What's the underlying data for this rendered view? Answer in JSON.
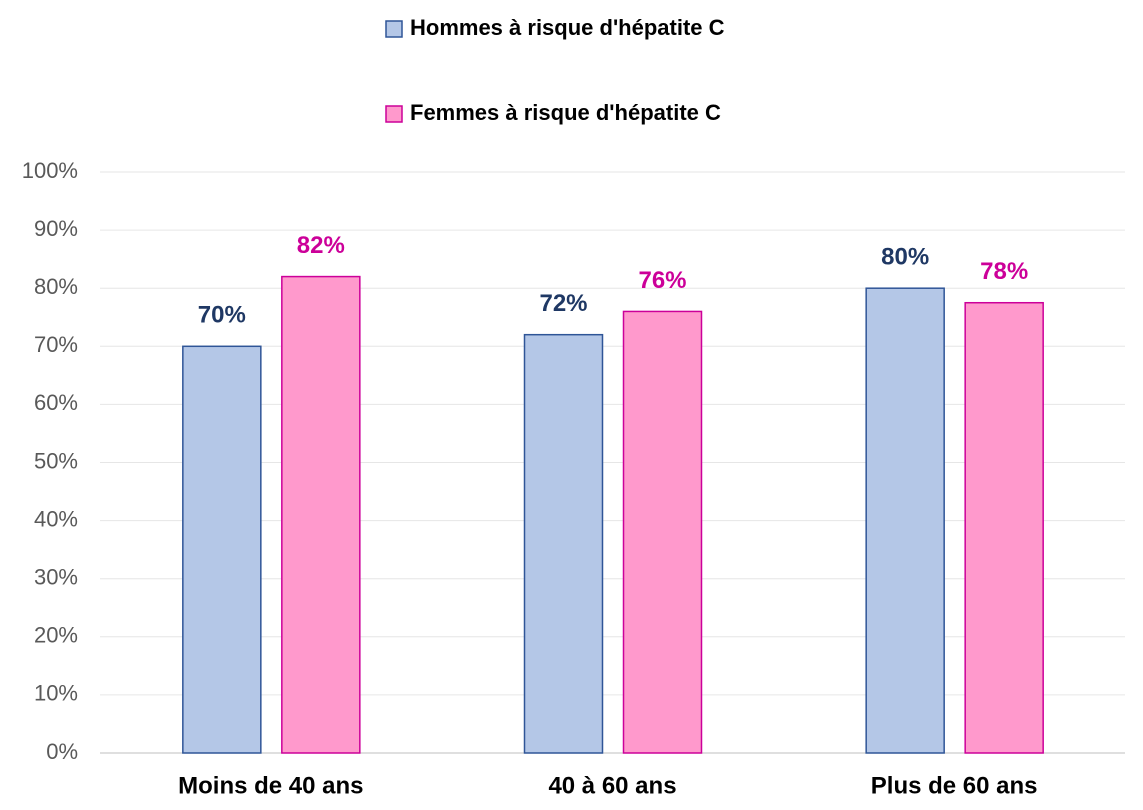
{
  "chart_data": {
    "type": "bar",
    "categories": [
      "Moins de 40 ans",
      "40 à 60 ans",
      "Plus de 60 ans"
    ],
    "series": [
      {
        "name": "Hommes à risque d'hépatite C",
        "color": "#b4c7e7",
        "edge": "#2f5597",
        "label_color": "#1f3864",
        "values": [
          70,
          72,
          80
        ],
        "value_labels": [
          "70%",
          "72%",
          "80%"
        ]
      },
      {
        "name": "Femmes à risque d'hépatite C",
        "color": "#ff99cc",
        "edge": "#cc0099",
        "label_color": "#cc0099",
        "values": [
          82,
          76,
          77.5
        ],
        "value_labels": [
          "82%",
          "76%",
          "78%"
        ]
      }
    ],
    "ylim": [
      0,
      100
    ],
    "yticks": [
      {
        "value": 0,
        "label": "0%"
      },
      {
        "value": 10,
        "label": "10%"
      },
      {
        "value": 20,
        "label": "20%"
      },
      {
        "value": 30,
        "label": "30%"
      },
      {
        "value": 40,
        "label": "40%"
      },
      {
        "value": 50,
        "label": "50%"
      },
      {
        "value": 60,
        "label": "60%"
      },
      {
        "value": 70,
        "label": "70%"
      },
      {
        "value": 80,
        "label": "80%"
      },
      {
        "value": 90,
        "label": "90%"
      },
      {
        "value": 100,
        "label": "100%"
      }
    ],
    "grid": true,
    "legend": "top"
  }
}
